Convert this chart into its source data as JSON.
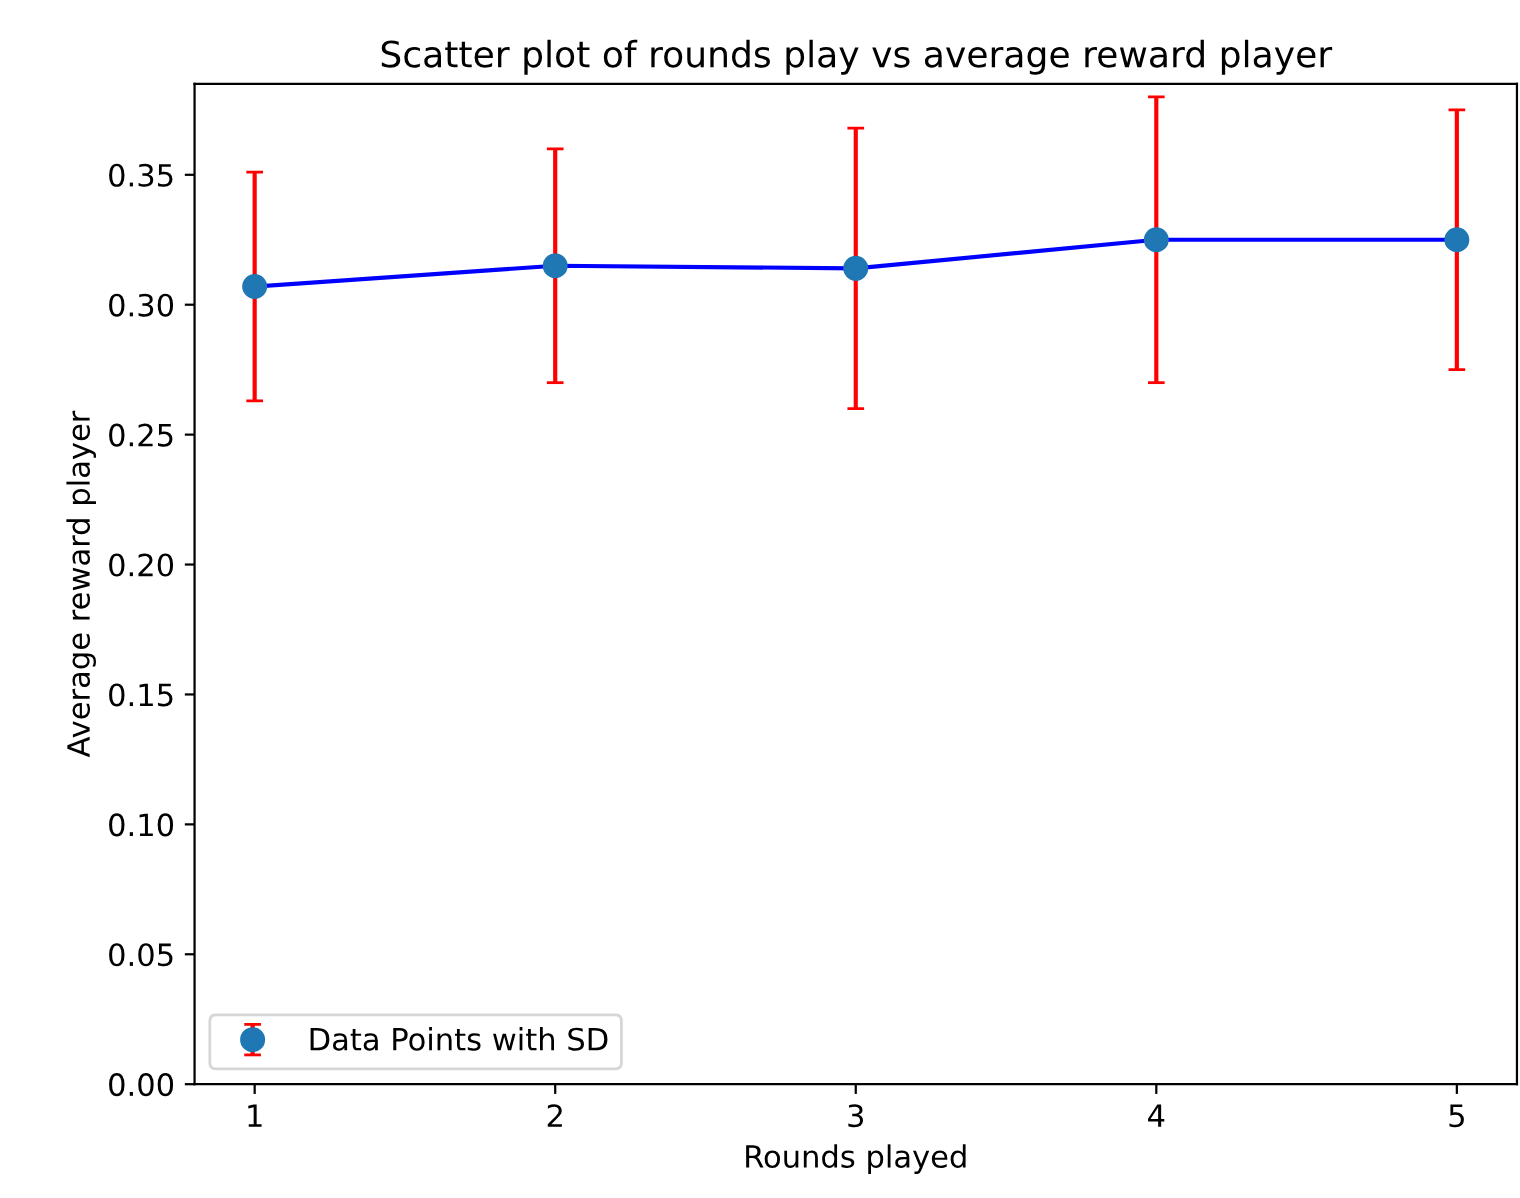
{
  "chart_data": {
    "type": "scatter",
    "title": "Scatter plot of rounds play vs average reward player",
    "xlabel": "Rounds played",
    "ylabel": "Average reward player",
    "x": [
      1,
      2,
      3,
      4,
      5
    ],
    "series": [
      {
        "type": "line",
        "color": "#0000ff",
        "values": [
          0.307,
          0.315,
          0.314,
          0.325,
          0.325
        ]
      },
      {
        "name": "Data Points with SD",
        "color": "#1f77b4",
        "values": [
          0.307,
          0.315,
          0.314,
          0.325,
          0.325
        ],
        "errors": [
          0.044,
          0.045,
          0.054,
          0.055,
          0.05
        ],
        "marker": "circle"
      }
    ],
    "xlim": [
      0.8,
      5.2
    ],
    "xticks": [
      1,
      2,
      3,
      4,
      5
    ],
    "ylim": [
      0,
      0.385
    ],
    "yticks": [
      {
        "value": 0,
        "label": "0.00"
      },
      {
        "value": 0.05,
        "label": "0.05"
      },
      {
        "value": 0.1,
        "label": "0.10"
      },
      {
        "value": 0.15,
        "label": "0.15"
      },
      {
        "value": 0.2,
        "label": "0.20"
      },
      {
        "value": 0.25,
        "label": "0.25"
      },
      {
        "value": 0.3,
        "label": "0.30"
      },
      {
        "value": 0.35,
        "label": "0.35"
      }
    ],
    "grid": false,
    "legend": "bottom left"
  }
}
